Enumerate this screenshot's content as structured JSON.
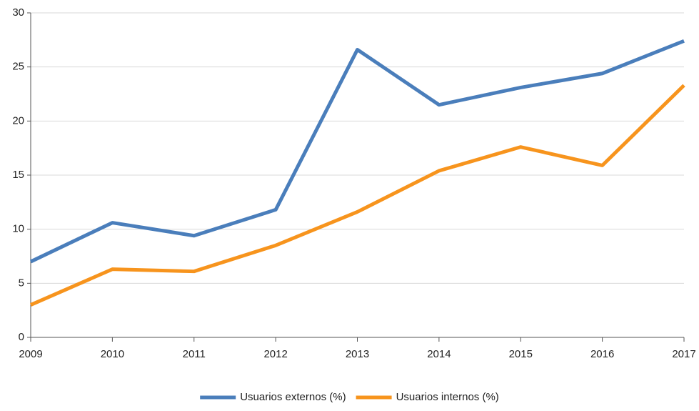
{
  "chart_data": {
    "type": "line",
    "categories": [
      "2009",
      "2010",
      "2011",
      "2012",
      "2013",
      "2014",
      "2015",
      "2016",
      "2017"
    ],
    "series": [
      {
        "name": "Usuarios externos (%)",
        "color": "#4a7ebb",
        "values": [
          7.0,
          10.6,
          9.4,
          11.8,
          26.6,
          21.5,
          23.1,
          24.4,
          27.4
        ]
      },
      {
        "name": "Usuarios internos (%)",
        "color": "#f7941d",
        "values": [
          3.0,
          6.3,
          6.1,
          8.5,
          11.6,
          15.4,
          17.6,
          15.9,
          23.3
        ]
      }
    ],
    "ylim": [
      0,
      30
    ],
    "yticks": [
      0,
      5,
      10,
      15,
      20,
      25,
      30
    ],
    "grid": true,
    "legend": "bottom"
  }
}
